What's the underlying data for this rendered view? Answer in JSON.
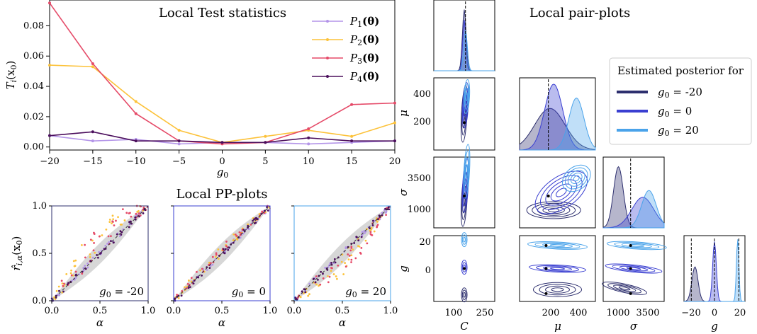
{
  "colors": {
    "P1": "#b394e8",
    "P2": "#fcc23a",
    "P3": "#e54a68",
    "P4": "#4b0e5c",
    "g_m20": "#2d2f6e",
    "g_0": "#3a3fd1",
    "g_20": "#4aa3ea",
    "band": "#d3d3d3"
  },
  "chart_data": [
    {
      "type": "line",
      "title": "Local Test statistics",
      "xlabel": "g",
      "xlabel_sub": "0",
      "ylabel": "T",
      "ylabel_sub": "i",
      "ylabel_tail": "(x",
      "ylabel_tail_sub": "0",
      "ylabel_end": ")",
      "x": [
        -20,
        -15,
        -10,
        -5,
        0,
        5,
        10,
        15,
        20
      ],
      "xlim": [
        -20,
        20
      ],
      "ylim": [
        -0.002,
        0.097
      ],
      "xticks": [
        "−20",
        "−15",
        "−10",
        "−5",
        "0",
        "5",
        "10",
        "15",
        "20"
      ],
      "yticks": [
        "0.00",
        "0.02",
        "0.04",
        "0.06",
        "0.08"
      ],
      "ytick_values": [
        0,
        0.02,
        0.04,
        0.06,
        0.08
      ],
      "legend_position": "top-right",
      "series": [
        {
          "name": "P",
          "sub": "1",
          "arg": "(θ)",
          "color_key": "P1",
          "values": [
            0.0075,
            0.004,
            0.005,
            0.002,
            0.003,
            0.003,
            0.002,
            0.003,
            0.004
          ]
        },
        {
          "name": "P",
          "sub": "2",
          "arg": "(θ)",
          "color_key": "P2",
          "values": [
            0.054,
            0.053,
            0.03,
            0.011,
            0.003,
            0.007,
            0.011,
            0.007,
            0.016
          ]
        },
        {
          "name": "P",
          "sub": "3",
          "arg": "(θ)",
          "color_key": "P3",
          "values": [
            0.095,
            0.055,
            0.022,
            0.004,
            0.002,
            0.003,
            0.012,
            0.028,
            0.029
          ]
        },
        {
          "name": "P",
          "sub": "4",
          "arg": "(θ)",
          "color_key": "P4",
          "values": [
            0.0075,
            0.01,
            0.004,
            0.004,
            0.003,
            0.003,
            0.006,
            0.004,
            0.004
          ]
        }
      ]
    },
    {
      "type": "scatter",
      "title": "Local PP-plots",
      "xlabel": "α",
      "ylabel": "r̂",
      "ylabel_sub": "i,α",
      "ylabel_tail": "(x",
      "ylabel_tail_sub": "0",
      "ylabel_end": ")",
      "xlim": [
        0,
        1
      ],
      "ylim": [
        0,
        1
      ],
      "xticks": [
        "0.0",
        "0.5",
        "1.0"
      ],
      "yticks": [
        "0.0",
        "0.5",
        "1.0"
      ],
      "panels": [
        {
          "annot_pre": "g",
          "annot_sub": "0",
          "annot_val": " = -20",
          "frame_key": "g_m20",
          "spread": 0.3
        },
        {
          "annot_pre": "g",
          "annot_sub": "0",
          "annot_val": " = 0",
          "frame_key": "g_0",
          "spread": 0.06
        },
        {
          "annot_pre": "g",
          "annot_sub": "0",
          "annot_val": " = 20",
          "frame_key": "g_20",
          "spread": 0.22
        }
      ]
    },
    {
      "type": "pairplot",
      "title": "Local pair-plots",
      "legend_title": "Estimated posterior for",
      "legend_position": "right",
      "variables": [
        "C",
        "μ",
        "σ",
        "g"
      ],
      "ticks": {
        "C": [
          "100",
          "250"
        ],
        "mu_x": [
          "200",
          "400"
        ],
        "mu_y": [
          "200",
          "400"
        ],
        "sigma_x": [
          "1000",
          "3500"
        ],
        "sigma_y": [
          "1000",
          "3500"
        ],
        "g_x": [
          "−20",
          "0",
          "20"
        ],
        "g_y": [
          "0",
          "20"
        ]
      },
      "series": [
        {
          "pre": "g",
          "sub": "0",
          "val": " = -20",
          "color_key": "g_m20",
          "g": -20
        },
        {
          "pre": "g",
          "sub": "0",
          "val": " = 0",
          "color_key": "g_0",
          "g": 0
        },
        {
          "pre": "g",
          "sub": "0",
          "val": " = 20",
          "color_key": "g_20",
          "g": 20
        }
      ]
    }
  ]
}
